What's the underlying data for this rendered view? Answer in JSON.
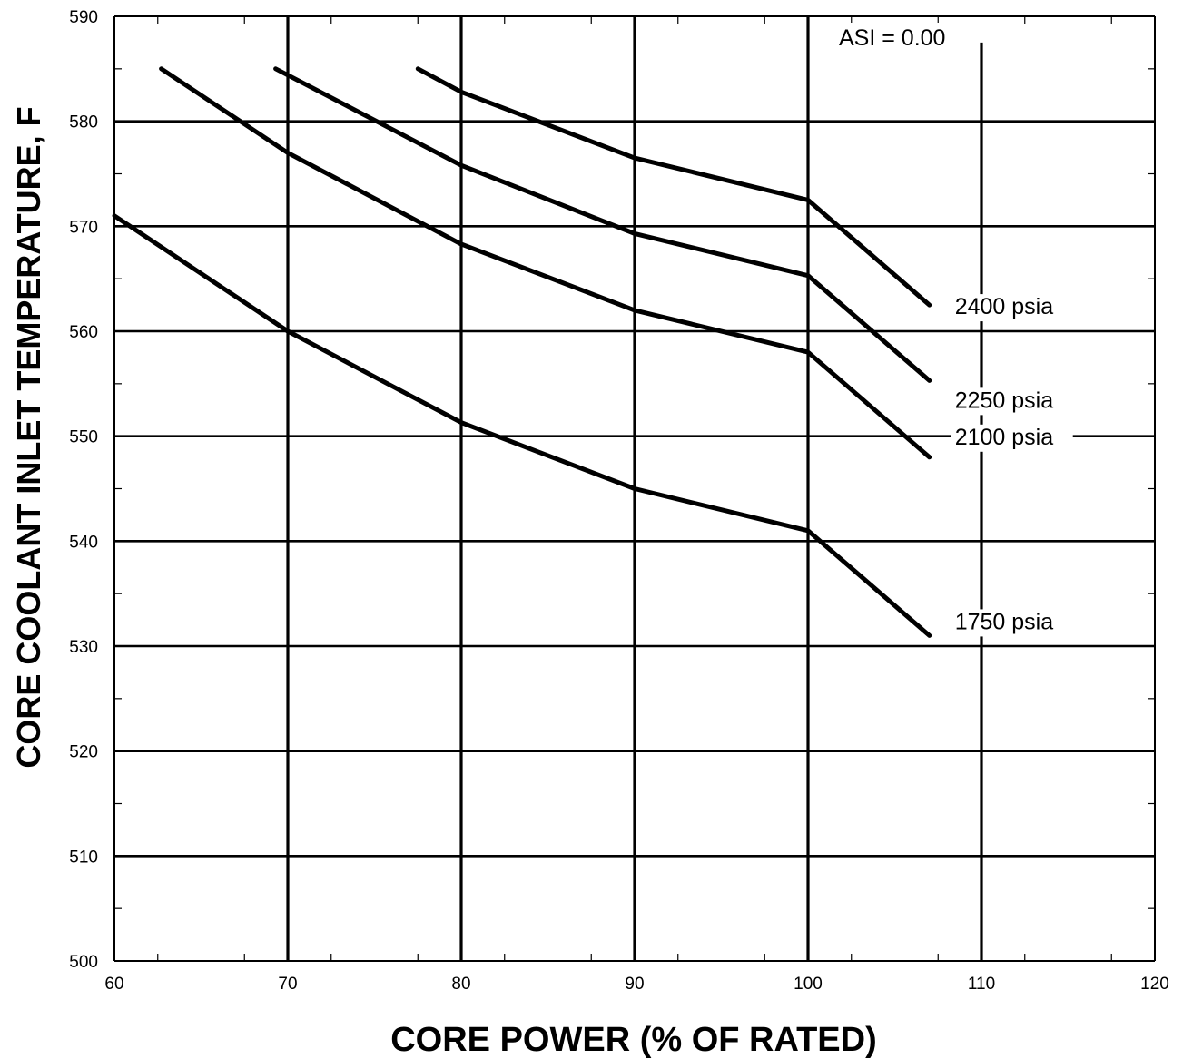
{
  "chart_data": {
    "type": "line",
    "title": "",
    "xlabel": "CORE POWER (% OF RATED)",
    "ylabel": "CORE COOLANT INLET TEMPERATURE, F",
    "xlim": [
      60,
      120
    ],
    "ylim": [
      500,
      590
    ],
    "x_ticks": [
      "60",
      "70",
      "80",
      "90",
      "100",
      "110",
      "120"
    ],
    "y_ticks": [
      "500",
      "510",
      "520",
      "530",
      "540",
      "550",
      "560",
      "570",
      "580",
      "590"
    ],
    "grid": true,
    "annotation": "ASI = 0.00",
    "series": [
      {
        "name": "2400 psia",
        "x": [
          77.5,
          80,
          90,
          100,
          107
        ],
        "y": [
          585,
          582.8,
          576.5,
          572.5,
          562.5
        ]
      },
      {
        "name": "2250 psia",
        "x": [
          69.3,
          80,
          90,
          100,
          107
        ],
        "y": [
          585,
          575.8,
          569.3,
          565.3,
          555.3
        ]
      },
      {
        "name": "2100 psia",
        "x": [
          62.7,
          70,
          80,
          90,
          100,
          107
        ],
        "y": [
          585,
          577,
          568.3,
          562,
          558,
          548
        ]
      },
      {
        "name": "1750 psia",
        "x": [
          60,
          70,
          80,
          90,
          100,
          107
        ],
        "y": [
          571,
          560,
          551.3,
          545,
          541,
          531
        ]
      }
    ]
  }
}
